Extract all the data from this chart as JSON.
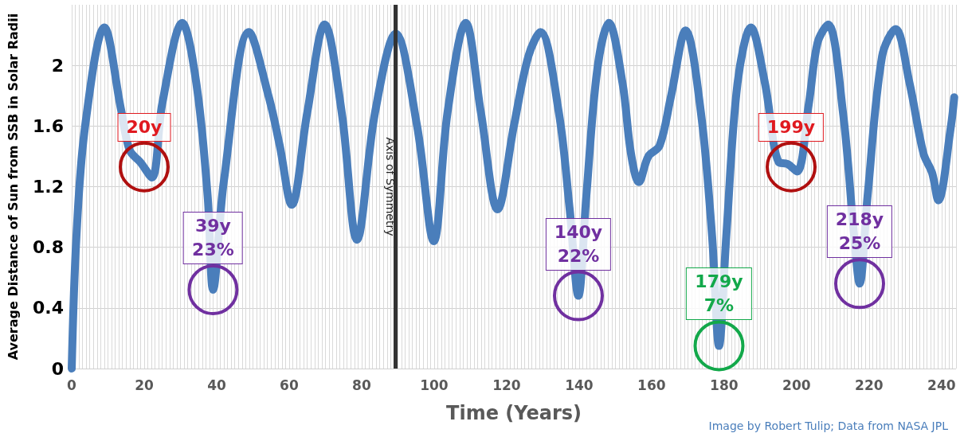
{
  "chart_data": {
    "type": "line",
    "xlabel": "Time (Years)",
    "ylabel": "Average Distance of Sun from SSB in Solar Radii",
    "x": [
      0,
      1.3,
      3.7,
      9,
      13.6,
      16,
      19,
      22.1,
      25,
      30.5,
      34.4,
      37.5,
      39,
      42,
      48.9,
      54.4,
      57.4,
      60.7,
      65,
      69.8,
      74.5,
      78.7,
      83.7,
      89.4,
      95.3,
      99.9,
      103.7,
      108.7,
      112.9,
      117.5,
      122,
      126,
      129.3,
      134.4,
      137.4,
      139.8,
      142,
      145,
      148.2,
      152,
      154.3,
      156.5,
      159.1,
      162.2,
      165.3,
      169.4,
      173.6,
      176.7,
      178.6,
      180.6,
      183.7,
      187.4,
      191.3,
      195.1,
      197.5,
      200.1,
      203.4,
      205.8,
      208.7,
      212.8,
      215.9,
      217.4,
      219.6,
      223.6,
      227.3,
      231.2,
      235,
      237.4,
      239.1,
      242.6,
      243.5
    ],
    "series": [
      {
        "color": "#4a7ebb",
        "values": [
          0,
          0.87,
          1.6,
          2.25,
          1.71,
          1.44,
          1.36,
          1.26,
          1.75,
          2.28,
          1.88,
          1.14,
          0.52,
          1.24,
          2.22,
          1.79,
          1.47,
          1.08,
          1.69,
          2.27,
          1.69,
          0.85,
          1.69,
          2.21,
          1.6,
          0.84,
          1.69,
          2.28,
          1.69,
          1.05,
          1.6,
          2.06,
          2.22,
          1.69,
          1.05,
          0.48,
          1.14,
          1.97,
          2.28,
          1.88,
          1.42,
          1.23,
          1.4,
          1.47,
          1.79,
          2.23,
          1.69,
          0.87,
          0.15,
          0.87,
          1.88,
          2.25,
          1.88,
          1.36,
          1.35,
          1.3,
          1.75,
          2.15,
          2.27,
          1.69,
          0.87,
          0.56,
          1.14,
          2.06,
          2.24,
          1.88,
          1.42,
          1.29,
          1.11,
          1.6,
          1.79
        ]
      }
    ],
    "xlim": [
      0,
      244
    ],
    "xticks": [
      0,
      20,
      40,
      60,
      80,
      100,
      120,
      140,
      160,
      180,
      200,
      220,
      240
    ],
    "ylim": [
      0,
      2.4
    ],
    "yticks": [
      0,
      0.4,
      0.8,
      1.2,
      1.6,
      2
    ],
    "grid": true,
    "line_style": "solid",
    "ref_lines": [
      {
        "axis": "x",
        "value": 89.4,
        "label": "Axis of Symmetry",
        "color": "#333333"
      }
    ],
    "annotations": [
      {
        "text": "20y",
        "x": 20,
        "y": 1.33
      },
      {
        "text": "39y\n23%",
        "x": 39,
        "y": 0.52
      },
      {
        "text": "140y\n22%",
        "x": 139.8,
        "y": 0.48
      },
      {
        "text": "179y\n7%",
        "x": 178.6,
        "y": 0.15
      },
      {
        "text": "199y",
        "x": 198.5,
        "y": 1.33
      },
      {
        "text": "218y\n25%",
        "x": 217.4,
        "y": 0.56
      },
      "Image by Robert Tulip; Data from NASA JPL"
    ]
  }
}
